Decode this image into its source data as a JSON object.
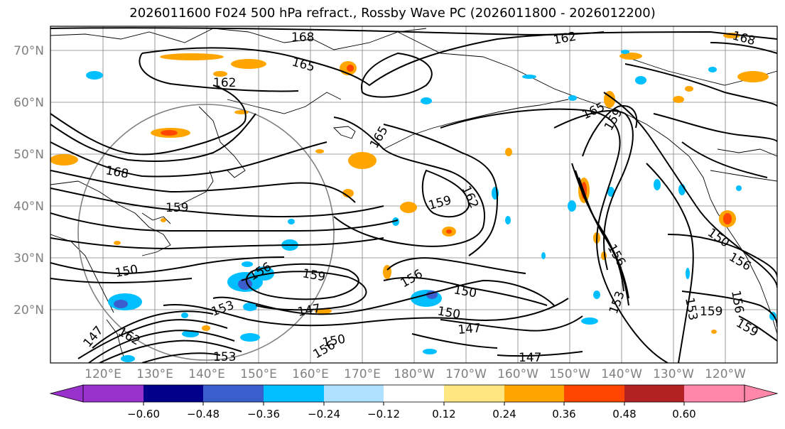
{
  "title": "2026011600 F024 500 hPa refract., Rossby Wave PC (2026011800 - 2026012200)",
  "map": {
    "lat_labels": [
      "70°N",
      "60°N",
      "50°N",
      "40°N",
      "30°N",
      "20°N"
    ],
    "lon_labels": [
      "120°E",
      "130°E",
      "140°E",
      "150°E",
      "160°E",
      "170°E",
      "180°W",
      "170°W",
      "160°W",
      "150°W",
      "140°W",
      "130°W",
      "120°W"
    ],
    "contour_labels": [
      "168",
      "165",
      "162",
      "162",
      "165",
      "162",
      "168",
      "168",
      "159",
      "159",
      "159",
      "165",
      "150",
      "156",
      "159",
      "156",
      "150",
      "150",
      "153",
      "147",
      "147",
      "162",
      "147",
      "153",
      "156",
      "153",
      "153",
      "150",
      "156",
      "159",
      "156",
      "159",
      "147",
      "150",
      "156"
    ],
    "colors": {
      "land": "#000000",
      "grid": "#808080",
      "circle": "#808080",
      "pos_low": "#ffe680",
      "pos_mid": "#ffa500",
      "pos_high": "#ff4500",
      "neg_low": "#b0e0ff",
      "neg_mid": "#00bfff",
      "neg_high": "#3a5fcd"
    }
  },
  "colorbar": {
    "ticks": [
      "−0.60",
      "−0.48",
      "−0.36",
      "−0.24",
      "−0.12",
      "0.12",
      "0.24",
      "0.36",
      "0.48",
      "0.60"
    ],
    "colors": [
      "#9932cc",
      "#00008b",
      "#3a5fcd",
      "#00bfff",
      "#b0e0ff",
      "#ffffff",
      "#ffe680",
      "#ffa500",
      "#ff4500",
      "#b22222",
      "#ff88aa"
    ]
  }
}
